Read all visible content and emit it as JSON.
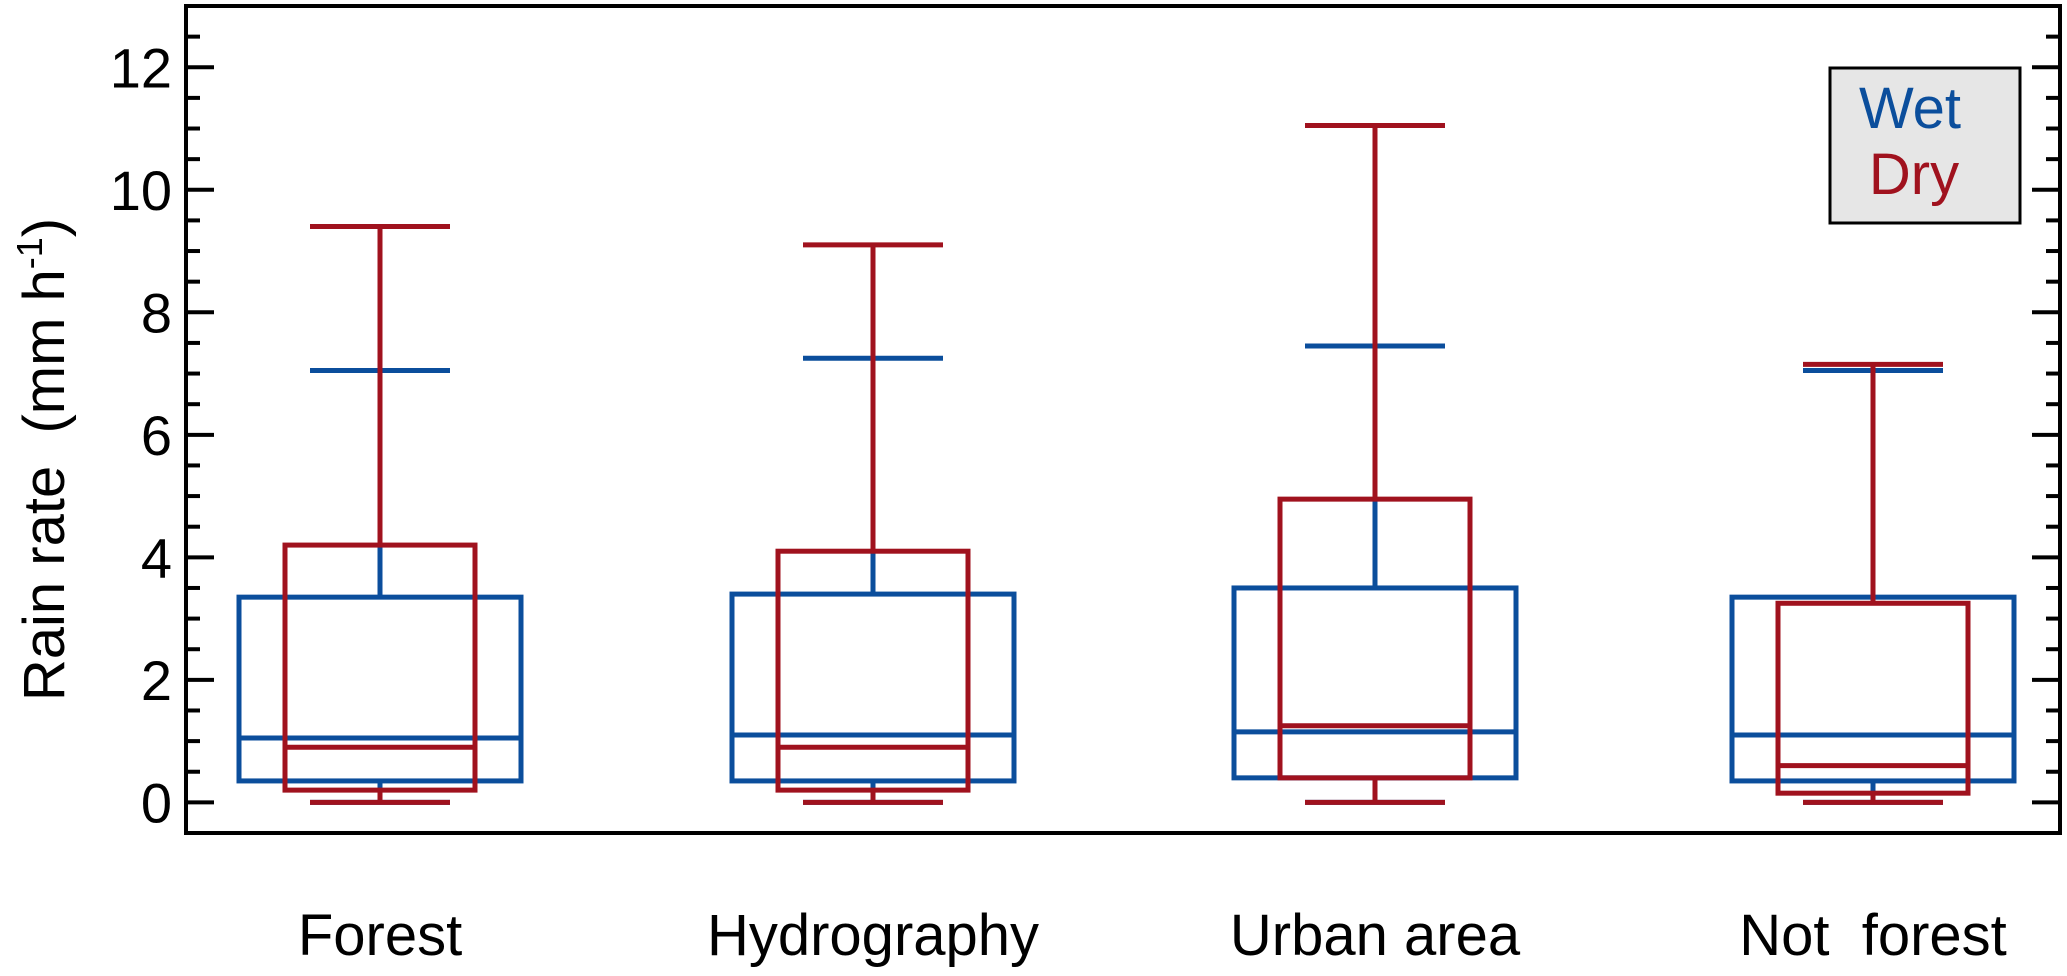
{
  "chart_data": {
    "type": "box",
    "categories": [
      "Forest",
      "Hydrography",
      "Urban area",
      "Not  forest"
    ],
    "ylabel": "Rain rate  (mm h",
    "ylabel_superscript": "-1",
    "ylabel_close": ")",
    "ylim": [
      -0.5,
      13
    ],
    "yticks": [
      0,
      2,
      4,
      6,
      8,
      10,
      12
    ],
    "ytick_labels": [
      "0",
      "2",
      "4",
      "6",
      "8",
      "10",
      "12"
    ],
    "yminor_step": 0.5,
    "grid": false,
    "legend": {
      "placement": "top-right",
      "entries": [
        "Wet",
        "Dry"
      ]
    },
    "series": [
      {
        "name": "Wet",
        "color": "#0B4E9C",
        "boxes": [
          {
            "whisker_low": 0.0,
            "q1": 0.35,
            "median": 1.05,
            "q3": 3.35,
            "whisker_high": 7.05
          },
          {
            "whisker_low": 0.0,
            "q1": 0.35,
            "median": 1.1,
            "q3": 3.4,
            "whisker_high": 7.25
          },
          {
            "whisker_low": 0.0,
            "q1": 0.4,
            "median": 1.15,
            "q3": 3.5,
            "whisker_high": 7.45
          },
          {
            "whisker_low": 0.0,
            "q1": 0.35,
            "median": 1.1,
            "q3": 3.35,
            "whisker_high": 7.05
          }
        ]
      },
      {
        "name": "Dry",
        "color": "#A0121E",
        "boxes": [
          {
            "whisker_low": 0.0,
            "q1": 0.2,
            "median": 0.9,
            "q3": 4.2,
            "whisker_high": 9.4
          },
          {
            "whisker_low": 0.0,
            "q1": 0.2,
            "median": 0.9,
            "q3": 4.1,
            "whisker_high": 9.1
          },
          {
            "whisker_low": 0.0,
            "q1": 0.4,
            "median": 1.25,
            "q3": 4.95,
            "whisker_high": 11.05
          },
          {
            "whisker_low": 0.0,
            "q1": 0.15,
            "median": 0.6,
            "q3": 3.25,
            "whisker_high": 7.15
          }
        ]
      }
    ],
    "legend_background": "#E6E6E6"
  }
}
